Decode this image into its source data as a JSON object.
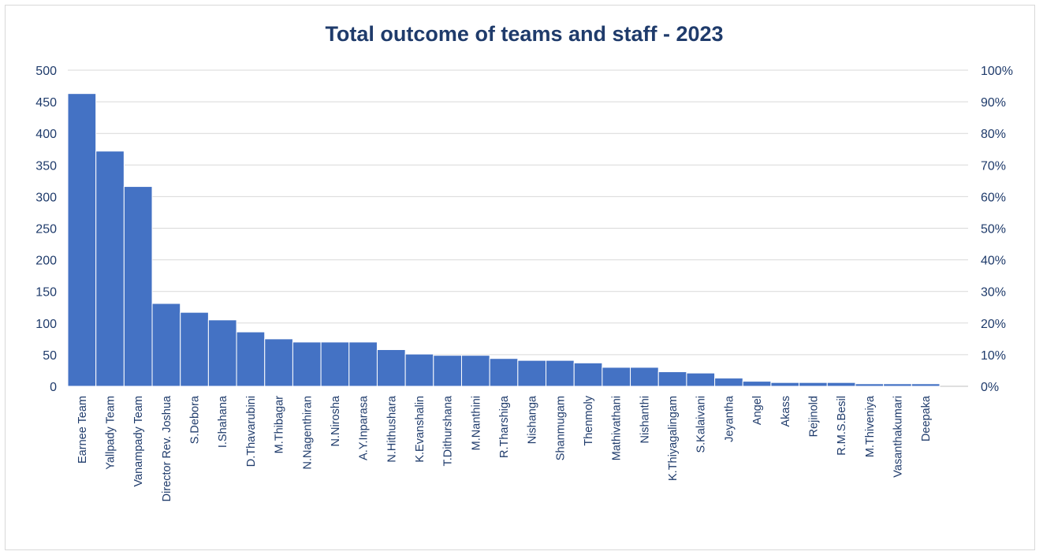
{
  "chart_data": {
    "type": "bar",
    "title": "Total outcome of teams and staff - 2023",
    "xlabel": "",
    "ylabel": "",
    "ylim": [
      0,
      500
    ],
    "yticks": [
      "0",
      "50",
      "100",
      "150",
      "200",
      "250",
      "300",
      "350",
      "400",
      "450",
      "500"
    ],
    "y2lim": [
      0,
      100
    ],
    "y2ticks": [
      "0%",
      "10%",
      "20%",
      "30%",
      "40%",
      "50%",
      "60%",
      "70%",
      "80%",
      "90%",
      "100%"
    ],
    "grid": true,
    "legend": "none",
    "bar_color": "#4472c4",
    "categories": [
      "Earnee Team",
      "Yallpady Team",
      "Vanampady Team",
      "Director Rev. Joshua",
      "S.Debora",
      "I.Shahana",
      "D.Thavarubini",
      "M.Thibagar",
      "N.Nagenthiran",
      "N.Nirosha",
      "A.Y.Inparasa",
      "N.Hithushara",
      "K.Evanshalin",
      "T.Dithurshana",
      "M.Nanthini",
      "R.Tharshiga",
      "Nishanga",
      "Shanmugam",
      "Thenmoly",
      "Mathivathani",
      "Nishanthi",
      "K.Thiyagalingam",
      "S.Kalaivani",
      "Jeyantha",
      "Angel",
      "Akass",
      "Rejinold",
      "R.M.S.Besil",
      "M.Thiveniya",
      "Vasanthakumari",
      "Deepaka"
    ],
    "values": [
      463,
      372,
      316,
      131,
      117,
      105,
      86,
      75,
      70,
      70,
      70,
      58,
      51,
      49,
      49,
      44,
      41,
      41,
      37,
      30,
      30,
      23,
      21,
      13,
      8,
      6,
      6,
      6,
      4,
      4,
      4
    ]
  }
}
